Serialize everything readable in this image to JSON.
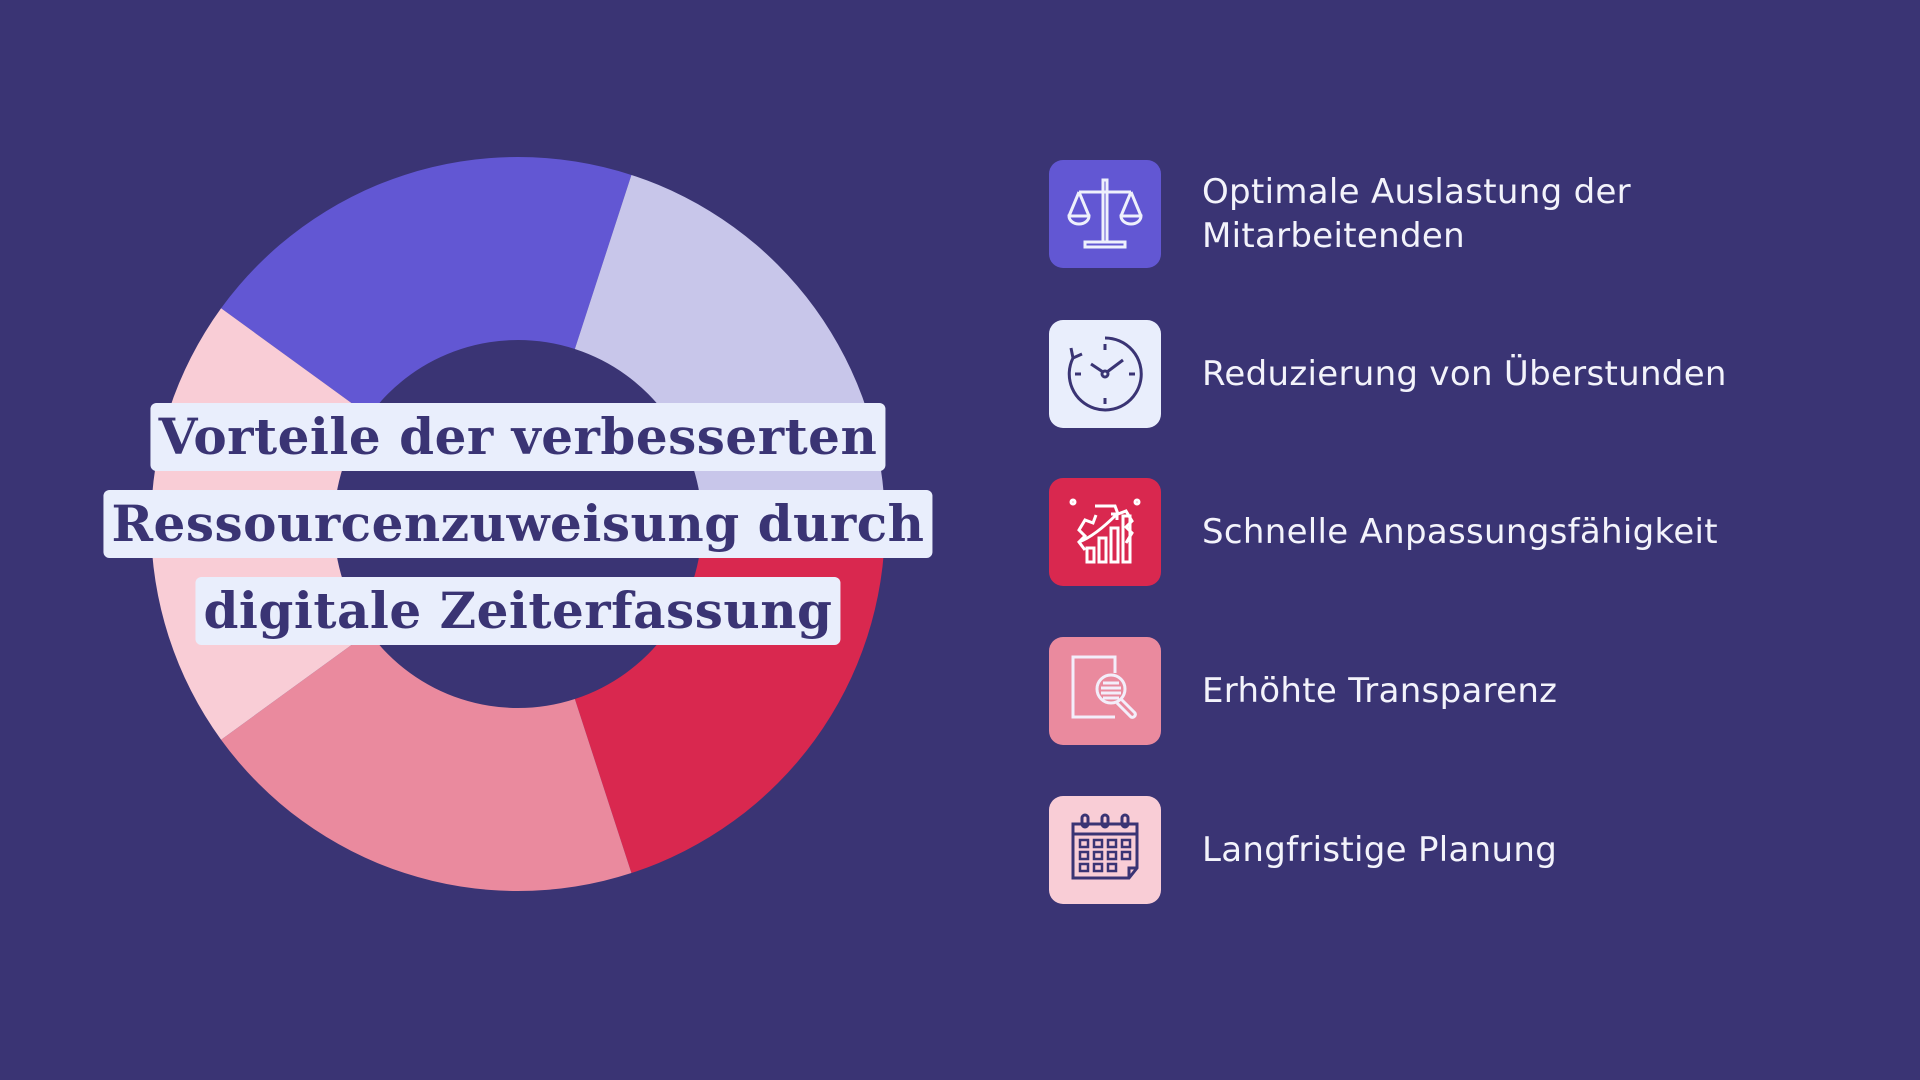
{
  "title": {
    "lines": [
      "Vorteile der verbesserten",
      "Ressourcenzuweisung durch",
      "digitale Zeiterfassung"
    ]
  },
  "colors": {
    "background": "#3a3474",
    "title_bg": "#e9eefc",
    "title_text": "#3a3474",
    "blue": "#6257d3",
    "lavender": "#c8c6ea",
    "red": "#d9284f",
    "pink": "#ea8a9e",
    "light_pink": "#f9cdd6"
  },
  "donut_segments": [
    {
      "color": "#6257d3",
      "share": 0.2
    },
    {
      "color": "#c8c6ea",
      "share": 0.2
    },
    {
      "color": "#d9284f",
      "share": 0.2
    },
    {
      "color": "#ea8a9e",
      "share": 0.2
    },
    {
      "color": "#f9cdd6",
      "share": 0.2
    }
  ],
  "items": [
    {
      "label": "Optimale Auslastung der Mitarbeitenden",
      "icon": "scales-icon",
      "color": "#6257d3"
    },
    {
      "label": "Reduzierung von Überstunden",
      "icon": "clock-icon",
      "color": "#e9eefc"
    },
    {
      "label": "Schnelle Anpassungsfähigkeit",
      "icon": "gear-chart-icon",
      "color": "#d9284f"
    },
    {
      "label": "Erhöhte Transparenz",
      "icon": "document-search-icon",
      "color": "#ea8a9e"
    },
    {
      "label": "Langfristige Planung",
      "icon": "calendar-icon",
      "color": "#f9cdd6"
    }
  ]
}
